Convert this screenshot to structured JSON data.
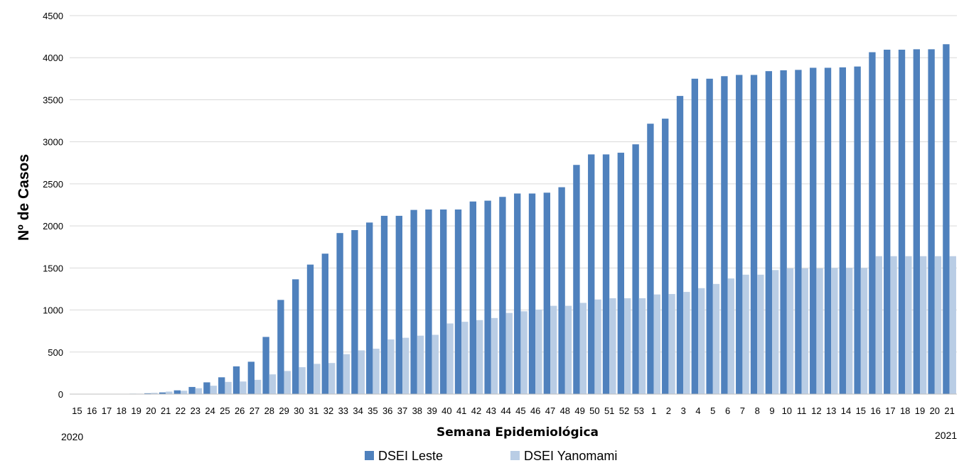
{
  "chart_data": {
    "type": "bar",
    "xlabel": "Semana Epidemiológica",
    "ylabel": "Nº de Casos",
    "ylim": [
      0,
      4500
    ],
    "yticks": [
      0,
      500,
      1000,
      1500,
      2000,
      2500,
      3000,
      3500,
      4000,
      4500
    ],
    "grid": true,
    "legend_position": "bottom",
    "year_labels": {
      "start": "2020",
      "end": "2021"
    },
    "categories": [
      "15",
      "16",
      "17",
      "18",
      "19",
      "20",
      "21",
      "22",
      "23",
      "24",
      "25",
      "26",
      "27",
      "28",
      "29",
      "30",
      "31",
      "32",
      "33",
      "34",
      "35",
      "36",
      "37",
      "38",
      "39",
      "40",
      "41",
      "42",
      "43",
      "44",
      "45",
      "46",
      "47",
      "48",
      "49",
      "50",
      "51",
      "52",
      "53",
      "1",
      "2",
      "3",
      "4",
      "5",
      "6",
      "7",
      "8",
      "9",
      "10",
      "11",
      "12",
      "13",
      "14",
      "15",
      "16",
      "17",
      "18",
      "19",
      "20",
      "21"
    ],
    "series": [
      {
        "name": "DSEI Leste",
        "color": "#4f81bd",
        "values": [
          0,
          0,
          0,
          0,
          5,
          10,
          20,
          45,
          85,
          140,
          200,
          330,
          385,
          680,
          1120,
          1365,
          1540,
          1670,
          1915,
          1950,
          2040,
          2120,
          2120,
          2190,
          2195,
          2195,
          2195,
          2290,
          2300,
          2345,
          2385,
          2385,
          2395,
          2460,
          2725,
          2850,
          2850,
          2870,
          2970,
          3215,
          3275,
          3545,
          3750,
          3750,
          3780,
          3795,
          3795,
          3840,
          3850,
          3855,
          3880,
          3880,
          3885,
          3895,
          4065,
          4095,
          4095,
          4100,
          4100,
          4160
        ]
      },
      {
        "name": "DSEI Yanomami",
        "color": "#b9cde5",
        "values": [
          0,
          0,
          0,
          0,
          5,
          15,
          30,
          40,
          70,
          100,
          145,
          150,
          170,
          235,
          275,
          320,
          360,
          370,
          475,
          520,
          540,
          650,
          670,
          695,
          705,
          840,
          860,
          880,
          905,
          965,
          985,
          1005,
          1050,
          1050,
          1085,
          1125,
          1140,
          1140,
          1140,
          1185,
          1190,
          1215,
          1260,
          1310,
          1375,
          1420,
          1420,
          1475,
          1495,
          1495,
          1495,
          1500,
          1500,
          1500,
          1640,
          1640,
          1640,
          1640,
          1640,
          1640
        ]
      }
    ]
  }
}
